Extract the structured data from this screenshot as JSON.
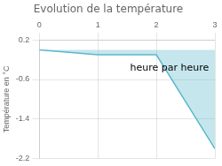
{
  "chart_data": {
    "type": "line",
    "title": "Evolution de la température",
    "ylabel": "Température en °C",
    "x": [
      0,
      1,
      2,
      3
    ],
    "values": [
      0.0,
      -0.1,
      -0.1,
      -2.0
    ],
    "color": "#5bb8cc",
    "xlim": [
      0,
      3
    ],
    "xticks": [
      0,
      1,
      2,
      3
    ],
    "ylim": [
      -2.2,
      0.2
    ],
    "yticks": [
      0.2,
      -0.6,
      -1.4,
      -2.2
    ],
    "grid": true,
    "annotations": [
      {
        "text": "heure par heure",
        "x": 1.55,
        "y": -0.28
      }
    ]
  }
}
